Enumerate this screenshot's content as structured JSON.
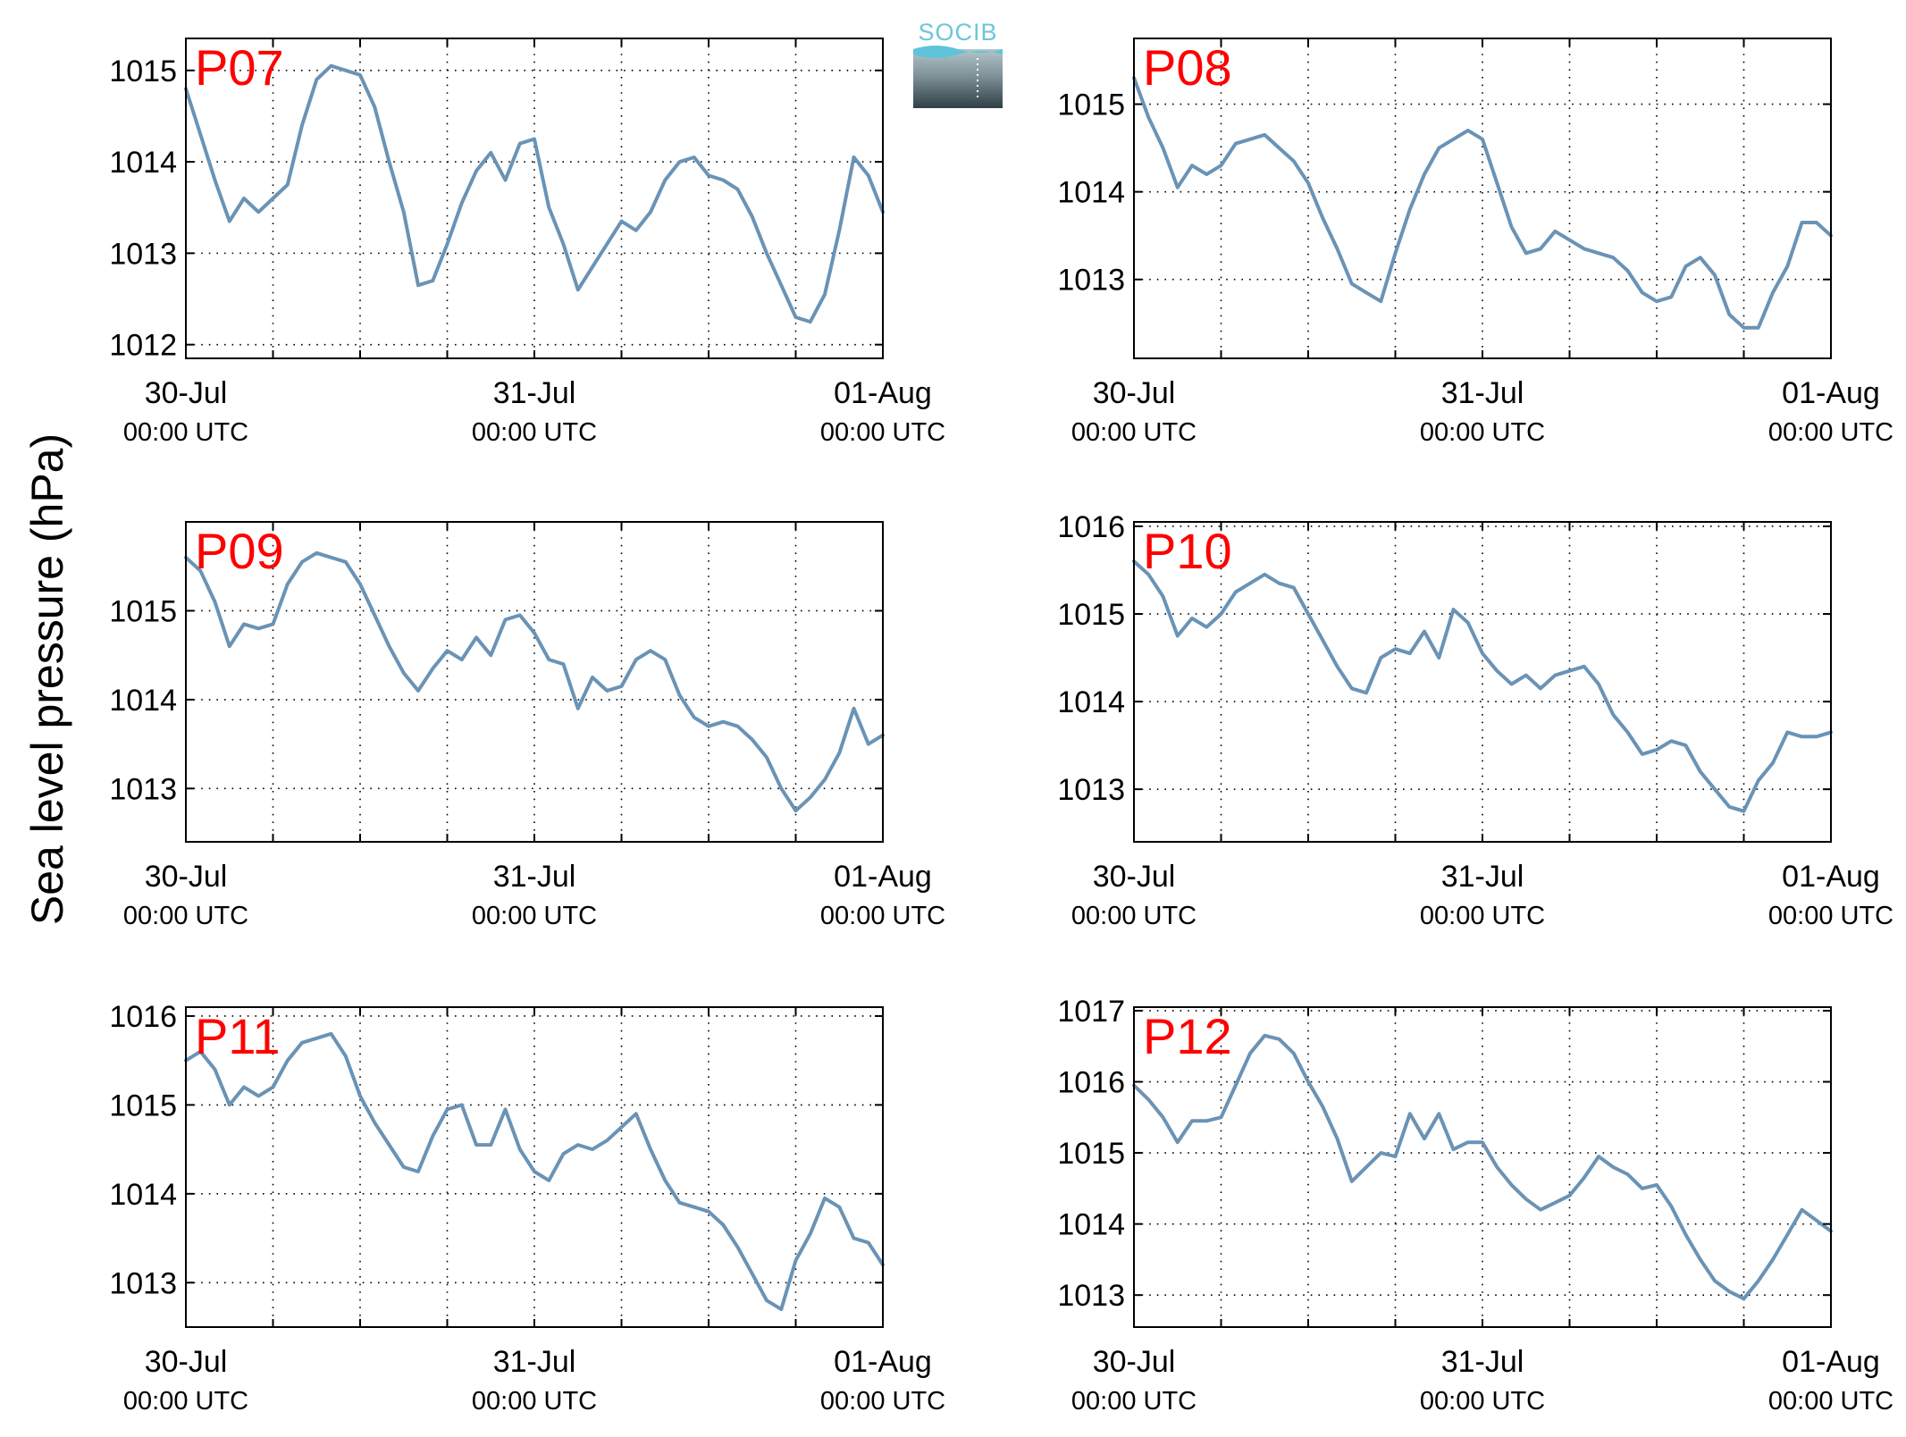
{
  "figure": {
    "ylabel": "Sea level pressure (hPa)",
    "logo_text": "SOCIB",
    "line_color": "#6a93b5",
    "station_label_color": "#ff0000"
  },
  "chart_data": [
    {
      "type": "line",
      "station": "P07",
      "x_tick_labels": [
        [
          "30-Jul",
          "00:00 UTC"
        ],
        [
          "31-Jul",
          "00:00 UTC"
        ],
        [
          "01-Aug",
          "00:00 UTC"
        ]
      ],
      "xlim_hours": [
        0,
        48
      ],
      "ylim": [
        1011.85,
        1015.35
      ],
      "yticks": [
        1012,
        1013,
        1014,
        1015
      ],
      "grid": true,
      "x_hours": [
        0,
        1,
        2,
        3,
        4,
        5,
        6,
        7,
        8,
        9,
        10,
        11,
        12,
        13,
        14,
        15,
        16,
        17,
        18,
        19,
        20,
        21,
        22,
        23,
        24,
        25,
        26,
        27,
        28,
        29,
        30,
        31,
        32,
        33,
        34,
        35,
        36,
        37,
        38,
        39,
        40,
        41,
        42,
        43,
        44,
        45,
        46,
        47,
        48
      ],
      "values": [
        1014.8,
        1014.3,
        1013.8,
        1013.35,
        1013.6,
        1013.45,
        1013.6,
        1013.75,
        1014.4,
        1014.9,
        1015.05,
        1015.0,
        1014.95,
        1014.6,
        1014.0,
        1013.45,
        1012.65,
        1012.7,
        1013.1,
        1013.55,
        1013.9,
        1014.1,
        1013.8,
        1014.2,
        1014.25,
        1013.5,
        1013.1,
        1012.6,
        1012.85,
        1013.1,
        1013.35,
        1013.25,
        1013.45,
        1013.8,
        1014.0,
        1014.05,
        1013.85,
        1013.8,
        1013.7,
        1013.4,
        1013.0,
        1012.65,
        1012.3,
        1012.25,
        1012.55,
        1013.25,
        1014.05,
        1013.85,
        1013.45
      ]
    },
    {
      "type": "line",
      "station": "P08",
      "x_tick_labels": [
        [
          "30-Jul",
          "00:00 UTC"
        ],
        [
          "31-Jul",
          "00:00 UTC"
        ],
        [
          "01-Aug",
          "00:00 UTC"
        ]
      ],
      "xlim_hours": [
        0,
        48
      ],
      "ylim": [
        1012.1,
        1015.75
      ],
      "yticks": [
        1013,
        1014,
        1015
      ],
      "grid": true,
      "x_hours": [
        0,
        1,
        2,
        3,
        4,
        5,
        6,
        7,
        8,
        9,
        10,
        11,
        12,
        13,
        14,
        15,
        16,
        17,
        18,
        19,
        20,
        21,
        22,
        23,
        24,
        25,
        26,
        27,
        28,
        29,
        30,
        31,
        32,
        33,
        34,
        35,
        36,
        37,
        38,
        39,
        40,
        41,
        42,
        43,
        44,
        45,
        46,
        47,
        48
      ],
      "values": [
        1015.3,
        1014.85,
        1014.5,
        1014.05,
        1014.3,
        1014.2,
        1014.3,
        1014.55,
        1014.6,
        1014.65,
        1014.5,
        1014.35,
        1014.1,
        1013.7,
        1013.35,
        1012.95,
        1012.85,
        1012.75,
        1013.3,
        1013.8,
        1014.2,
        1014.5,
        1014.6,
        1014.7,
        1014.6,
        1014.1,
        1013.6,
        1013.3,
        1013.35,
        1013.55,
        1013.45,
        1013.35,
        1013.3,
        1013.25,
        1013.1,
        1012.85,
        1012.75,
        1012.8,
        1013.15,
        1013.25,
        1013.05,
        1012.6,
        1012.45,
        1012.45,
        1012.85,
        1013.15,
        1013.65,
        1013.65,
        1013.5
      ]
    },
    {
      "type": "line",
      "station": "P09",
      "x_tick_labels": [
        [
          "30-Jul",
          "00:00 UTC"
        ],
        [
          "31-Jul",
          "00:00 UTC"
        ],
        [
          "01-Aug",
          "00:00 UTC"
        ]
      ],
      "xlim_hours": [
        0,
        48
      ],
      "ylim": [
        1012.4,
        1016.0
      ],
      "yticks": [
        1013,
        1014,
        1015
      ],
      "grid": true,
      "x_hours": [
        0,
        1,
        2,
        3,
        4,
        5,
        6,
        7,
        8,
        9,
        10,
        11,
        12,
        13,
        14,
        15,
        16,
        17,
        18,
        19,
        20,
        21,
        22,
        23,
        24,
        25,
        26,
        27,
        28,
        29,
        30,
        31,
        32,
        33,
        34,
        35,
        36,
        37,
        38,
        39,
        40,
        41,
        42,
        43,
        44,
        45,
        46,
        47,
        48
      ],
      "values": [
        1015.6,
        1015.45,
        1015.1,
        1014.6,
        1014.85,
        1014.8,
        1014.85,
        1015.3,
        1015.55,
        1015.65,
        1015.6,
        1015.55,
        1015.3,
        1014.95,
        1014.6,
        1014.3,
        1014.1,
        1014.35,
        1014.55,
        1014.45,
        1014.7,
        1014.5,
        1014.9,
        1014.95,
        1014.75,
        1014.45,
        1014.4,
        1013.9,
        1014.25,
        1014.1,
        1014.15,
        1014.45,
        1014.55,
        1014.45,
        1014.05,
        1013.8,
        1013.7,
        1013.75,
        1013.7,
        1013.55,
        1013.35,
        1013.0,
        1012.75,
        1012.9,
        1013.1,
        1013.4,
        1013.9,
        1013.5,
        1013.6
      ]
    },
    {
      "type": "line",
      "station": "P10",
      "x_tick_labels": [
        [
          "30-Jul",
          "00:00 UTC"
        ],
        [
          "31-Jul",
          "00:00 UTC"
        ],
        [
          "01-Aug",
          "00:00 UTC"
        ]
      ],
      "xlim_hours": [
        0,
        48
      ],
      "ylim": [
        1012.4,
        1016.05
      ],
      "yticks": [
        1013,
        1014,
        1015,
        1016
      ],
      "grid": true,
      "x_hours": [
        0,
        1,
        2,
        3,
        4,
        5,
        6,
        7,
        8,
        9,
        10,
        11,
        12,
        13,
        14,
        15,
        16,
        17,
        18,
        19,
        20,
        21,
        22,
        23,
        24,
        25,
        26,
        27,
        28,
        29,
        30,
        31,
        32,
        33,
        34,
        35,
        36,
        37,
        38,
        39,
        40,
        41,
        42,
        43,
        44,
        45,
        46,
        47,
        48
      ],
      "values": [
        1015.6,
        1015.45,
        1015.2,
        1014.75,
        1014.95,
        1014.85,
        1015.0,
        1015.25,
        1015.35,
        1015.45,
        1015.35,
        1015.3,
        1015.0,
        1014.7,
        1014.4,
        1014.15,
        1014.1,
        1014.5,
        1014.6,
        1014.55,
        1014.8,
        1014.5,
        1015.05,
        1014.9,
        1014.55,
        1014.35,
        1014.2,
        1014.3,
        1014.15,
        1014.3,
        1014.35,
        1014.4,
        1014.2,
        1013.85,
        1013.65,
        1013.4,
        1013.45,
        1013.55,
        1013.5,
        1013.2,
        1013.0,
        1012.8,
        1012.75,
        1013.1,
        1013.3,
        1013.65,
        1013.6,
        1013.6,
        1013.65
      ]
    },
    {
      "type": "line",
      "station": "P11",
      "x_tick_labels": [
        [
          "30-Jul",
          "00:00 UTC"
        ],
        [
          "31-Jul",
          "00:00 UTC"
        ],
        [
          "01-Aug",
          "00:00 UTC"
        ]
      ],
      "xlim_hours": [
        0,
        48
      ],
      "ylim": [
        1012.5,
        1016.1
      ],
      "yticks": [
        1013,
        1014,
        1015,
        1016
      ],
      "grid": true,
      "x_hours": [
        0,
        1,
        2,
        3,
        4,
        5,
        6,
        7,
        8,
        9,
        10,
        11,
        12,
        13,
        14,
        15,
        16,
        17,
        18,
        19,
        20,
        21,
        22,
        23,
        24,
        25,
        26,
        27,
        28,
        29,
        30,
        31,
        32,
        33,
        34,
        35,
        36,
        37,
        38,
        39,
        40,
        41,
        42,
        43,
        44,
        45,
        46,
        47,
        48
      ],
      "values": [
        1015.5,
        1015.6,
        1015.4,
        1015.0,
        1015.2,
        1015.1,
        1015.2,
        1015.5,
        1015.7,
        1015.75,
        1015.8,
        1015.55,
        1015.1,
        1014.8,
        1014.55,
        1014.3,
        1014.25,
        1014.65,
        1014.95,
        1015.0,
        1014.55,
        1014.55,
        1014.95,
        1014.5,
        1014.25,
        1014.15,
        1014.45,
        1014.55,
        1014.5,
        1014.6,
        1014.75,
        1014.9,
        1014.5,
        1014.15,
        1013.9,
        1013.85,
        1013.8,
        1013.65,
        1013.4,
        1013.1,
        1012.8,
        1012.7,
        1013.25,
        1013.55,
        1013.95,
        1013.85,
        1013.5,
        1013.45,
        1013.2
      ]
    },
    {
      "type": "line",
      "station": "P12",
      "x_tick_labels": [
        [
          "30-Jul",
          "00:00 UTC"
        ],
        [
          "31-Jul",
          "00:00 UTC"
        ],
        [
          "01-Aug",
          "00:00 UTC"
        ]
      ],
      "xlim_hours": [
        0,
        48
      ],
      "ylim": [
        1012.55,
        1017.05
      ],
      "yticks": [
        1013,
        1014,
        1015,
        1016,
        1017
      ],
      "grid": true,
      "x_hours": [
        0,
        1,
        2,
        3,
        4,
        5,
        6,
        7,
        8,
        9,
        10,
        11,
        12,
        13,
        14,
        15,
        16,
        17,
        18,
        19,
        20,
        21,
        22,
        23,
        24,
        25,
        26,
        27,
        28,
        29,
        30,
        31,
        32,
        33,
        34,
        35,
        36,
        37,
        38,
        39,
        40,
        41,
        42,
        43,
        44,
        45,
        46,
        47,
        48
      ],
      "values": [
        1015.95,
        1015.75,
        1015.5,
        1015.15,
        1015.45,
        1015.45,
        1015.5,
        1015.95,
        1016.4,
        1016.65,
        1016.6,
        1016.4,
        1016.0,
        1015.65,
        1015.2,
        1014.6,
        1014.8,
        1015.0,
        1014.95,
        1015.55,
        1015.2,
        1015.55,
        1015.05,
        1015.15,
        1015.15,
        1014.8,
        1014.55,
        1014.35,
        1014.2,
        1014.3,
        1014.4,
        1014.65,
        1014.95,
        1014.8,
        1014.7,
        1014.5,
        1014.55,
        1014.25,
        1013.85,
        1013.5,
        1013.2,
        1013.05,
        1012.95,
        1013.2,
        1013.5,
        1013.85,
        1014.2,
        1014.05,
        1013.9
      ]
    }
  ]
}
